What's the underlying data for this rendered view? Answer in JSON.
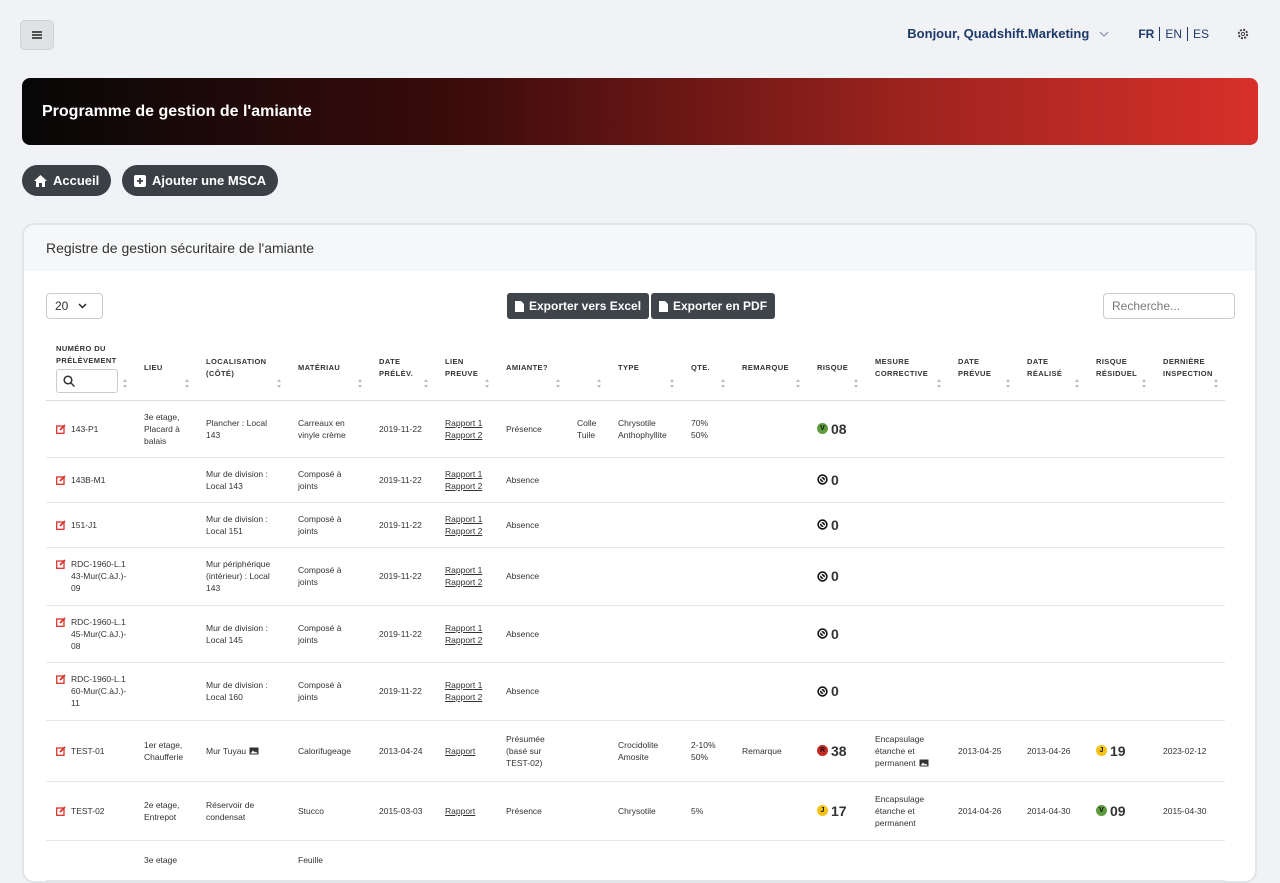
{
  "header": {
    "greeting": "Bonjour, Quadshift.Marketing",
    "languages": [
      "FR",
      "EN",
      "ES"
    ]
  },
  "banner": {
    "title": "Programme de gestion de l'amiante"
  },
  "buttons": [
    "Accueil",
    "Ajouter une MSCA"
  ],
  "card": {
    "title": "Registre de gestion sécuritaire de l'amiante",
    "page_size": "20",
    "export_buttons": [
      "Exporter vers Excel",
      "Exporter en PDF"
    ],
    "search_placeholder": "Recherche..."
  },
  "table": {
    "columns": [
      "NUMÉRO DU PRÉLÈVEMENT",
      "LIEU",
      "LOCALISATION (CÔTÉ)",
      "MATÉRIAU",
      "DATE PRÉLÈV.",
      "LIEN PREUVE",
      "AMIANTE?",
      null,
      "TYPE",
      "QTE.",
      "REMARQUE",
      "RISQUE",
      "MESURE CORRECTIVE",
      "DATE PRÉVUE",
      "DATE RÉALISÉ",
      "RISQUE RÉSIDUEL",
      "DERNIÈRE INSPECTION"
    ],
    "rows": [
      [
        "143-P1",
        "3e etage, Placard à balais",
        "Plancher : Local 143",
        "Carreaux en vinyle crème",
        "2019-11-22",
        [
          "Rapport 1",
          "Rapport 2"
        ],
        "Présence",
        [
          "Colle",
          "Tuile"
        ],
        [
          "Chrysotile",
          "Anthophyllite"
        ],
        [
          "70%",
          "50%"
        ],
        null,
        {
          "badge": "V",
          "value": "08"
        },
        null,
        null,
        null,
        null,
        null
      ],
      [
        "143B-M1",
        null,
        "Mur de division : Local 143",
        "Composé à joints",
        "2019-11-22",
        [
          "Rapport 1",
          "Rapport 2"
        ],
        "Absence",
        null,
        null,
        null,
        null,
        {
          "value": "0"
        },
        null,
        null,
        null,
        null,
        null
      ],
      [
        "151-J1",
        null,
        "Mur de division : Local 151",
        "Composé à joints",
        "2019-11-22",
        [
          "Rapport 1",
          "Rapport 2"
        ],
        "Absence",
        null,
        null,
        null,
        null,
        {
          "value": "0"
        },
        null,
        null,
        null,
        null,
        null
      ],
      [
        "RDC-1960-L.143-Mur(C.àJ.)-09",
        null,
        "Mur périphérique (intérieur) : Local 143",
        "Composé à joints",
        "2019-11-22",
        [
          "Rapport 1",
          "Rapport 2"
        ],
        "Absence",
        null,
        null,
        null,
        null,
        {
          "value": "0"
        },
        null,
        null,
        null,
        null,
        null
      ],
      [
        "RDC-1960-L.145-Mur(C.àJ.)-08",
        null,
        "Mur de division : Local 145",
        "Composé à joints",
        "2019-11-22",
        [
          "Rapport 1",
          "Rapport 2"
        ],
        "Absence",
        null,
        null,
        null,
        null,
        {
          "value": "0"
        },
        null,
        null,
        null,
        null,
        null
      ],
      [
        "RDC-1960-L.160-Mur(C.àJ.)-11",
        null,
        "Mur de division : Local 160",
        "Composé à joints",
        "2019-11-22",
        [
          "Rapport 1",
          "Rapport 2"
        ],
        "Absence",
        null,
        null,
        null,
        null,
        {
          "value": "0"
        },
        null,
        null,
        null,
        null,
        null
      ],
      [
        "TEST-01",
        "1er etage, Chaufferie",
        "Mur Tuyau",
        "Calorifugeage",
        "2013-04-24",
        [
          "Rapport"
        ],
        "Présumée (basé sur TEST-02)",
        null,
        [
          "Crocidolite",
          "Amosite"
        ],
        [
          "2-10%",
          "50%"
        ],
        "Remarque",
        {
          "badge": "R",
          "value": "38"
        },
        "Encapsulage étanche et permanent",
        "2013-04-25",
        "2013-04-26",
        {
          "badge": "J",
          "value": "19"
        },
        "2023-02-12"
      ],
      [
        "TEST-02",
        "2e etage, Entrepot",
        "Réservoir de condensat",
        "Stucco",
        "2015-03-03",
        [
          "Rapport"
        ],
        "Présence",
        null,
        [
          "Chrysotile"
        ],
        [
          "5%"
        ],
        null,
        {
          "badge": "J",
          "value": "17"
        },
        "Encapsulage étanche et permanent",
        "2014-04-26",
        "2014-04-30",
        {
          "badge": "V",
          "value": "09"
        },
        "2015-04-30"
      ],
      [
        null,
        "3e etage",
        null,
        "Feuille",
        null,
        null,
        null,
        null,
        null,
        null,
        null,
        null,
        null,
        null,
        null,
        null,
        null
      ]
    ]
  }
}
